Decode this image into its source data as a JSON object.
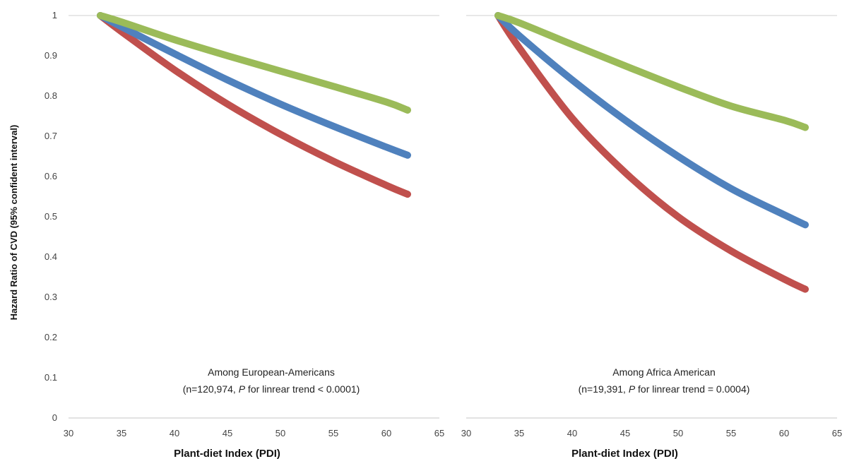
{
  "colors": {
    "red": "#c0504d",
    "blue": "#4f81bd",
    "green": "#9bbb59",
    "axis": "#d0d0d0",
    "text": "#444444"
  },
  "chart_data": [
    {
      "type": "line",
      "xlabel": "Plant-diet Index (PDI)",
      "ylabel": "Hazard Ratio of CVD (95% confident interval)",
      "xlim": [
        30,
        65
      ],
      "ylim": [
        0,
        1
      ],
      "xticks": [
        "30",
        "35",
        "40",
        "45",
        "50",
        "55",
        "60",
        "65"
      ],
      "yticks": [
        "0",
        "0.1",
        "0.2",
        "0.3",
        "0.4",
        "0.5",
        "0.6",
        "0.7",
        "0.8",
        "0.9",
        "1"
      ],
      "grid": false,
      "annotation": {
        "line1": "Among European-Americans",
        "line2_prefix": "(n=120,974, ",
        "line2_p": "P",
        "line2_suffix": " for linrear trend < 0.0001)"
      },
      "series": [
        {
          "color": "#c0504d",
          "x": [
            33,
            35,
            40,
            45,
            50,
            55,
            60,
            62
          ],
          "y": [
            1.0,
            0.96,
            0.865,
            0.78,
            0.705,
            0.638,
            0.578,
            0.556
          ]
        },
        {
          "color": "#4f81bd",
          "x": [
            33,
            35,
            40,
            45,
            50,
            55,
            60,
            62
          ],
          "y": [
            1.0,
            0.972,
            0.905,
            0.84,
            0.78,
            0.725,
            0.673,
            0.653
          ]
        },
        {
          "color": "#9bbb59",
          "x": [
            33,
            35,
            40,
            45,
            50,
            55,
            60,
            62
          ],
          "y": [
            1.0,
            0.984,
            0.94,
            0.9,
            0.862,
            0.824,
            0.785,
            0.765
          ]
        }
      ]
    },
    {
      "type": "line",
      "xlabel": "Plant-diet Index (PDI)",
      "ylabel": "",
      "xlim": [
        30,
        65
      ],
      "ylim": [
        0,
        1
      ],
      "xticks": [
        "30",
        "35",
        "40",
        "45",
        "50",
        "55",
        "60",
        "65"
      ],
      "yticks": [],
      "grid": false,
      "annotation": {
        "line1": "Among Africa American",
        "line2_prefix": "(n=19,391, ",
        "line2_p": "P",
        "line2_suffix": " for linrear trend = 0.0004)"
      },
      "series": [
        {
          "color": "#c0504d",
          "x": [
            33,
            35,
            40,
            45,
            50,
            55,
            60,
            62
          ],
          "y": [
            1.0,
            0.92,
            0.745,
            0.61,
            0.5,
            0.415,
            0.345,
            0.32
          ]
        },
        {
          "color": "#4f81bd",
          "x": [
            33,
            35,
            40,
            45,
            50,
            55,
            60,
            62
          ],
          "y": [
            1.0,
            0.95,
            0.84,
            0.74,
            0.65,
            0.57,
            0.505,
            0.48
          ]
        },
        {
          "color": "#9bbb59",
          "x": [
            33,
            35,
            40,
            45,
            50,
            55,
            60,
            62
          ],
          "y": [
            1.0,
            0.982,
            0.928,
            0.875,
            0.823,
            0.775,
            0.74,
            0.722
          ]
        }
      ]
    }
  ]
}
